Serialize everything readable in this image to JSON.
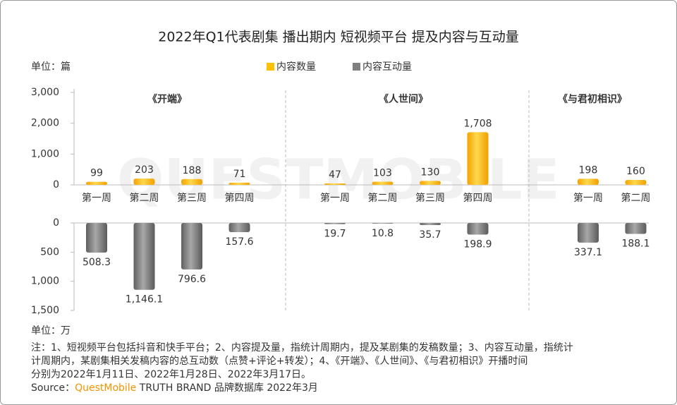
{
  "chart_data": {
    "type": "bar",
    "title": "2022年Q1代表剧集 播出期内 短视频平台 提及内容与互动量",
    "y_unit": "单位：篇",
    "y2_unit": "单位：万",
    "watermark": "QUESTMOBILE",
    "categories": [
      "第一周",
      "第二周",
      "第三周",
      "第四周",
      "第一周",
      "第二周",
      "第三周",
      "第四周",
      "第一周",
      "第二周"
    ],
    "groups": [
      {
        "name": "《开端》",
        "members": [
          0,
          1,
          2,
          3
        ]
      },
      {
        "name": "《人世间》",
        "members": [
          4,
          5,
          6,
          7
        ]
      },
      {
        "name": "《与君初相识》",
        "members": [
          8,
          9
        ]
      }
    ],
    "series": [
      {
        "name": "内容数量",
        "color": "#ffc000",
        "axis": "y",
        "values": [
          99,
          203,
          188,
          71,
          47,
          103,
          130,
          1708,
          198,
          160
        ],
        "value_labels": [
          "99",
          "203",
          "188",
          "71",
          "47",
          "103",
          "130",
          "1,708",
          "198",
          "160"
        ]
      },
      {
        "name": "内容互动量",
        "color": "#7f7f7f",
        "axis": "y2",
        "values": [
          508.3,
          1146.1,
          796.6,
          157.6,
          19.7,
          10.8,
          35.7,
          198.9,
          337.1,
          188.1
        ],
        "value_labels": [
          "508.3",
          "1,146.1",
          "796.6",
          "157.6",
          "19.7",
          "10.8",
          "35.7",
          "198.9",
          "337.1",
          "188.1"
        ]
      }
    ],
    "ylim": [
      0,
      3000
    ],
    "yticks": [
      0,
      {
        "value": 1000,
        "label": "1,000"
      },
      {
        "value": 2000,
        "label": "2,000"
      },
      {
        "value": 3000,
        "label": "3,000"
      }
    ],
    "y2lim": [
      0,
      1500
    ],
    "y2_inverted": true,
    "y2ticks": [
      0,
      500,
      {
        "value": 1000,
        "label": "1,000"
      },
      {
        "value": 1500,
        "label": "1,500"
      }
    ]
  },
  "footer": {
    "notes": [
      "注：1、短视频平台包括抖音和快手平台；2、内容提及量，指统计周期内，提及某剧集的发稿数量；3、内容互动量，指统计",
      "计周期内，某剧集相关发稿内容的总互动数（点赞+评论+转发）；4、《开端》、《人世间》、《与君初相识》开播时间",
      "分别为2022年1月11日、2022年1月28日、2022年3月17日。"
    ],
    "source": {
      "label": "Source：",
      "brand": "QuestMobile",
      "text": " TRUTH BRAND 品牌数据库 2022年3月"
    }
  }
}
